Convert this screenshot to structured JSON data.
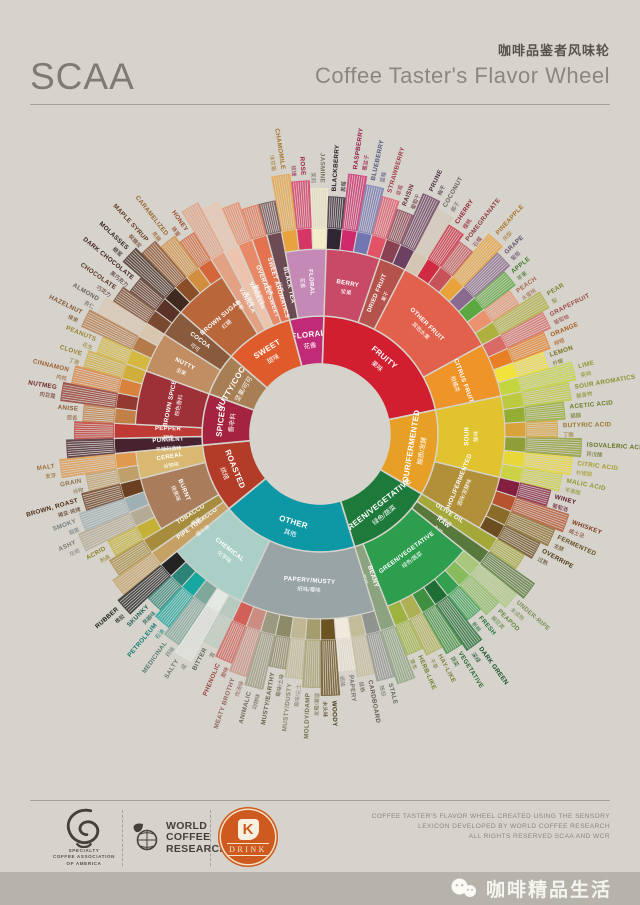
{
  "header": {
    "brand": "SCAA",
    "title_cn": "咖啡品鉴者风味轮",
    "title_en": "Coffee Taster's Flavor Wheel"
  },
  "footer": {
    "scaa_caption1": "SPECIALTY",
    "scaa_caption2": "COFFEE ASSOCIATION",
    "scaa_caption3": "OF AMERICA",
    "wcr_line1": "WORLD",
    "wcr_line2": "COFFEE",
    "wcr_line3": "RESEARCH",
    "drink_k": "K",
    "drink_label": "DRINK",
    "credit_line1": "COFFEE TASTER'S FLAVOR WHEEL CREATED USING THE SENSORY",
    "credit_line2": "LEXICON DEVELOPED BY WORLD COFFEE RESEARCH",
    "credit_line3": "ALL RIGHTS RESERVED SCAA AND WCR"
  },
  "wechat": {
    "label": "咖啡精品生活"
  },
  "chart_data": {
    "type": "sunburst",
    "title": "Coffee Taster's Flavor Wheel",
    "title_cn": "咖啡品鉴者风味轮",
    "start_angle_deg": -15,
    "rings": [
      "category",
      "subcategory",
      "attribute"
    ],
    "wheel": [
      {
        "en": "FLORAL",
        "cn": "花香",
        "color": "#c02a76",
        "children": [
          {
            "en": "BLACK TEA",
            "cn": "红茶",
            "color": "#6c4c52"
          },
          {
            "en": "FLORAL",
            "cn": "花香",
            "color": "#c489b5",
            "children": [
              {
                "en": "CHAMOMILE",
                "cn": "洋甘菊",
                "color": "#e8a33f"
              },
              {
                "en": "ROSE",
                "cn": "玫瑰",
                "color": "#d63663"
              },
              {
                "en": "JASMINE",
                "cn": "茉莉",
                "color": "#f3ecc8"
              }
            ]
          }
        ]
      },
      {
        "en": "FRUITY",
        "cn": "果味",
        "color": "#d11f30",
        "children": [
          {
            "en": "BERRY",
            "cn": "浆果",
            "color": "#c84a66",
            "children": [
              {
                "en": "BLACKBERRY",
                "cn": "黑莓",
                "color": "#2f2633"
              },
              {
                "en": "RASPBERRY",
                "cn": "覆盆子",
                "color": "#d02a6e"
              },
              {
                "en": "BLUEBERRY",
                "cn": "蓝莓",
                "color": "#7277b3"
              },
              {
                "en": "STRAWBERRY",
                "cn": "草莓",
                "color": "#e25368"
              }
            ]
          },
          {
            "en": "DRIED FRUIT",
            "cn": "果干",
            "color": "#b5524c",
            "children": [
              {
                "en": "RAISIN",
                "cn": "葡萄干",
                "color": "#8a4152"
              },
              {
                "en": "PRUNE",
                "cn": "梅干",
                "color": "#6b4060"
              }
            ]
          },
          {
            "en": "OTHER FRUIT",
            "cn": "其他水果",
            "color": "#e2614d",
            "children": [
              {
                "en": "COCONUT",
                "cn": "椰子",
                "color": "#d5c6b4"
              },
              {
                "en": "CHERRY",
                "cn": "樱桃",
                "color": "#d02b40"
              },
              {
                "en": "POMEGRANATE",
                "cn": "石榴",
                "color": "#c75257"
              },
              {
                "en": "PINEAPPLE",
                "cn": "凤梨",
                "color": "#eaa33b"
              },
              {
                "en": "GRAPE",
                "cn": "葡萄",
                "color": "#8a6a8f"
              },
              {
                "en": "APPLE",
                "cn": "苹果",
                "color": "#5aa83f"
              },
              {
                "en": "PEACH",
                "cn": "水蜜桃",
                "color": "#e9926d"
              },
              {
                "en": "PEAR",
                "cn": "梨",
                "color": "#b0b03f"
              }
            ]
          },
          {
            "en": "CITRUS FRUIT",
            "cn": "柑橘类",
            "color": "#ef9429",
            "children": [
              {
                "en": "GRAPEFRUIT",
                "cn": "葡萄柚",
                "color": "#d96a66"
              },
              {
                "en": "ORANGE",
                "cn": "柳橙",
                "color": "#e87f24"
              },
              {
                "en": "LEMON",
                "cn": "柠檬",
                "color": "#f2e23c"
              },
              {
                "en": "LIME",
                "cn": "莱姆",
                "color": "#c3d640"
              }
            ]
          }
        ]
      },
      {
        "en": "SOUR/FERMENTED",
        "cn": "酸质/发酵",
        "color": "#e79f26",
        "children": [
          {
            "en": "SOUR",
            "cn": "酸味",
            "color": "#e0c32e",
            "children": [
              {
                "en": "SOUR AROMATICS",
                "cn": "酸香物",
                "color": "#bccb3d"
              },
              {
                "en": "ACETIC ACID",
                "cn": "醋酸",
                "color": "#94ad34"
              },
              {
                "en": "BUTYRIC ACID",
                "cn": "丁酸",
                "color": "#d9a33c"
              },
              {
                "en": "ISOVALERIC ACID",
                "cn": "异戊酸",
                "color": "#8f9e36"
              },
              {
                "en": "CITRIC ACID",
                "cn": "柠檬酸",
                "color": "#e8d837"
              },
              {
                "en": "MALIC ACID",
                "cn": "苹果酸",
                "color": "#ccd145"
              }
            ]
          },
          {
            "en": "ALCOHOL/FERMENTED",
            "cn": "酒味/发酵味",
            "color": "#b2903a",
            "children": [
              {
                "en": "WINEY",
                "cn": "葡萄酒",
                "color": "#83203f"
              },
              {
                "en": "WHISKEY",
                "cn": "威士忌",
                "color": "#b5542f"
              },
              {
                "en": "FERMENTED",
                "cn": "发酵",
                "color": "#8a6b28"
              },
              {
                "en": "OVERRIPE",
                "cn": "过熟",
                "color": "#6b4d20"
              }
            ]
          }
        ]
      },
      {
        "en": "GREEN/VEGETATIVE",
        "cn": "绿色/蔬菜",
        "color": "#1e7a3a",
        "children": [
          {
            "en": "OLIVE OIL",
            "cn": "橄榄油",
            "color": "#a3a838"
          },
          {
            "en": "RAW",
            "cn": "生味",
            "color": "#57793c"
          },
          {
            "en": "GREEN/VEGETATIVE",
            "cn": "绿色/蔬菜",
            "color": "#2d9e4e",
            "children": [
              {
                "en": "UNDER-RIPE",
                "cn": "未成熟",
                "color": "#a9c87c"
              },
              {
                "en": "PEAPOD",
                "cn": "豌豆荚",
                "color": "#88bb5c"
              },
              {
                "en": "FRESH",
                "cn": "新鲜",
                "color": "#33a050"
              },
              {
                "en": "DARK GREEN",
                "cn": "深绿",
                "color": "#1f6e35"
              },
              {
                "en": "VEGETATIVE",
                "cn": "蔬菜",
                "color": "#3f9141"
              },
              {
                "en": "HAY-LIKE",
                "cn": "干草",
                "color": "#aeb054"
              },
              {
                "en": "HERB-LIKE",
                "cn": "草本",
                "color": "#9cb43f"
              }
            ]
          },
          {
            "en": "BEANY",
            "cn": "豆味",
            "color": "#8ba37e"
          }
        ]
      },
      {
        "en": "OTHER",
        "cn": "其他",
        "color": "#0e98a6",
        "children": [
          {
            "en": "PAPERY/MUSTY",
            "cn": "纸味/霉味",
            "color": "#99a4a6",
            "children": [
              {
                "en": "STALE",
                "cn": "陈旧",
                "color": "#8f948f"
              },
              {
                "en": "CARDBOARD",
                "cn": "纸板",
                "color": "#c3bc98"
              },
              {
                "en": "PAPERY",
                "cn": "纸味",
                "color": "#efeadb"
              },
              {
                "en": "WOODY",
                "cn": "木头味",
                "color": "#6c5322"
              },
              {
                "en": "MOLDY/DAMP",
                "cn": "发霉/潮湿",
                "color": "#a59d6e"
              },
              {
                "en": "MUSTY/DUSTY",
                "cn": "霉味/尘土",
                "color": "#c0b894"
              },
              {
                "en": "MUSTY/EARTHY",
                "cn": "霉味/土味",
                "color": "#8d8a68"
              },
              {
                "en": "ANIMALIC",
                "cn": "动物味",
                "color": "#9a9a80"
              },
              {
                "en": "MEATY BROTHY",
                "cn": "肉汤味",
                "color": "#cb8d82"
              },
              {
                "en": "PHENOLIC",
                "cn": "酚味",
                "color": "#d25f58"
              }
            ]
          },
          {
            "en": "CHEMICAL",
            "cn": "化学味",
            "color": "#a9cfc6",
            "children": [
              {
                "en": "BITTER",
                "cn": "苦",
                "color": "#b8cabf"
              },
              {
                "en": "SALTY",
                "cn": "咸",
                "color": "#e4e9e4"
              },
              {
                "en": "MEDICINAL",
                "cn": "药味",
                "color": "#7fa89d"
              },
              {
                "en": "PETROLEUM",
                "cn": "石油",
                "color": "#16a8a0"
              },
              {
                "en": "SKUNKY",
                "cn": "臭鼬味",
                "color": "#2c8478"
              },
              {
                "en": "RUBBER",
                "cn": "橡胶",
                "color": "#232323"
              }
            ]
          }
        ]
      },
      {
        "en": "ROASTED",
        "cn": "烘焙",
        "color": "#b33c28",
        "children": [
          {
            "en": "PIPE TOBACCO",
            "cn": "烟斗丝",
            "color": "#c5a164"
          },
          {
            "en": "TOBACCO",
            "cn": "烟草",
            "color": "#a88c3e"
          },
          {
            "en": "BURNT",
            "cn": "烧焦味",
            "color": "#a97c5b",
            "children": [
              {
                "en": "ACRID",
                "cn": "刺鼻",
                "color": "#c5b135"
              },
              {
                "en": "ASHY",
                "cn": "灰烬",
                "color": "#b3ab96"
              },
              {
                "en": "SMOKY",
                "cn": "烟熏",
                "color": "#9fb0b5"
              },
              {
                "en": "BROWN, ROAST",
                "cn": "褐变·烘烤",
                "color": "#6b3f22"
              }
            ]
          },
          {
            "en": "CEREAL",
            "cn": "谷物味",
            "color": "#d9b971",
            "children": [
              {
                "en": "GRAIN",
                "cn": "谷物",
                "color": "#bfa06a"
              },
              {
                "en": "MALT",
                "cn": "麦芽",
                "color": "#e09a4e"
              }
            ]
          }
        ]
      },
      {
        "en": "SPICES",
        "cn": "香辛料",
        "color": "#a42440",
        "children": [
          {
            "en": "PUNGENT",
            "cn": "辛辣刺激味",
            "color": "#46232e"
          },
          {
            "en": "PEPPER",
            "cn": "胡椒",
            "color": "#c03a35"
          },
          {
            "en": "BROWN SPICE",
            "cn": "棕色香料",
            "color": "#9e3038",
            "children": [
              {
                "en": "ANISE",
                "cn": "茴香",
                "color": "#c18045"
              },
              {
                "en": "NUTMEG",
                "cn": "肉豆蔻",
                "color": "#93392f"
              },
              {
                "en": "CINNAMON",
                "cn": "肉桂",
                "color": "#d9823e"
              },
              {
                "en": "CLOVE",
                "cn": "丁香",
                "color": "#cfae3e"
              }
            ]
          }
        ]
      },
      {
        "en": "NUTTY/COCOA",
        "cn": "坚果/可可",
        "color": "#a87e55",
        "children": [
          {
            "en": "NUTTY",
            "cn": "坚果",
            "color": "#c08e62",
            "children": [
              {
                "en": "PEANUTS",
                "cn": "花生",
                "color": "#d4b83f"
              },
              {
                "en": "HAZELNUT",
                "cn": "榛果",
                "color": "#b57a4a"
              },
              {
                "en": "ALMOND",
                "cn": "杏仁",
                "color": "#d8c6ae"
              }
            ]
          },
          {
            "en": "COCOA",
            "cn": "可可",
            "color": "#8a5a3c",
            "children": [
              {
                "en": "CHOCOLATE",
                "cn": "巧克力",
                "color": "#7a4a30"
              },
              {
                "en": "DARK CHOCOLATE",
                "cn": "黑巧克力",
                "color": "#5a3226"
              }
            ]
          }
        ]
      },
      {
        "en": "SWEET",
        "cn": "甜味",
        "color": "#e05b2b",
        "children": [
          {
            "en": "BROWN SUGAR",
            "cn": "红糖",
            "color": "#b9663a",
            "children": [
              {
                "en": "MOLASSES",
                "cn": "糖蜜",
                "color": "#402a20"
              },
              {
                "en": "MAPLE SYRUP",
                "cn": "枫糖浆",
                "color": "#8a4f28"
              },
              {
                "en": "CARAMELIZED",
                "cn": "焦糖",
                "color": "#d28e3e"
              },
              {
                "en": "HONEY",
                "cn": "蜂蜜",
                "color": "#d4663a"
              }
            ]
          },
          {
            "en": "VANILLA",
            "cn": "香草",
            "color": "#e3a183"
          },
          {
            "en": "VANILLIN",
            "cn": "香草醛",
            "color": "#ecc4ad"
          },
          {
            "en": "OVERALL SWEET",
            "cn": "整体甜味",
            "color": "#e88a68"
          },
          {
            "en": "SWEET AROMATICS",
            "cn": "甜香",
            "color": "#e4724f"
          }
        ]
      }
    ]
  }
}
